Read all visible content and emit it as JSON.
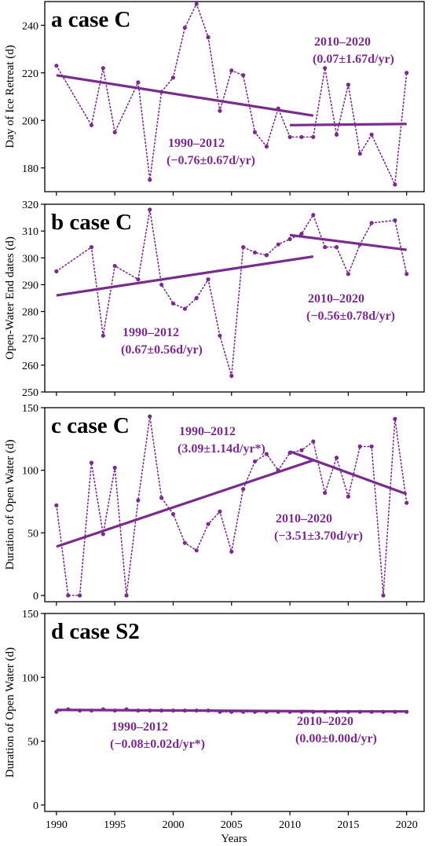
{
  "chart_data": [
    {
      "type": "line",
      "panel_label": "a case C",
      "ylabel": "Day of Ice Retreat (d)",
      "ylim": [
        170,
        250
      ],
      "yticks": [
        180,
        200,
        220,
        240
      ],
      "x": [
        1990,
        1991,
        1992,
        1993,
        1994,
        1995,
        1996,
        1997,
        1998,
        1999,
        2000,
        2001,
        2002,
        2003,
        2004,
        2005,
        2006,
        2007,
        2008,
        2009,
        2010,
        2011,
        2012,
        2013,
        2014,
        2015,
        2016,
        2017,
        2018,
        2019,
        2020
      ],
      "series": [
        {
          "values": [
            223,
            null,
            null,
            198,
            222,
            195,
            null,
            216,
            175,
            212,
            218,
            239,
            249,
            235,
            204,
            221,
            219,
            195,
            189,
            205,
            193,
            193,
            193,
            222,
            194,
            215,
            186,
            194,
            null,
            173,
            220
          ]
        }
      ],
      "trends": [
        {
          "label": "1990–2012",
          "rate": "(−0.76±0.67d/yr)",
          "x": [
            1990,
            2012
          ],
          "y": [
            219,
            202
          ]
        },
        {
          "label": "2010–2020",
          "rate": "(0.07±1.67d/yr)",
          "x": [
            2010,
            2020
          ],
          "y": [
            198,
            198.5
          ]
        }
      ]
    },
    {
      "type": "line",
      "panel_label": "b case C",
      "ylabel": "Open-Water End dates (d)",
      "ylim": [
        250,
        320
      ],
      "yticks": [
        250,
        260,
        270,
        280,
        290,
        300,
        310,
        320
      ],
      "x": [
        1990,
        1991,
        1992,
        1993,
        1994,
        1995,
        1996,
        1997,
        1998,
        1999,
        2000,
        2001,
        2002,
        2003,
        2004,
        2005,
        2006,
        2007,
        2008,
        2009,
        2010,
        2011,
        2012,
        2013,
        2014,
        2015,
        2016,
        2017,
        2018,
        2019,
        2020
      ],
      "series": [
        {
          "values": [
            295,
            null,
            null,
            304,
            271,
            297,
            null,
            292,
            318,
            290,
            283,
            281,
            285,
            292,
            271,
            256,
            304,
            302,
            301,
            305,
            307,
            309,
            316,
            304,
            304,
            294,
            305,
            313,
            null,
            314,
            294
          ]
        }
      ],
      "trends": [
        {
          "label": "1990–2012",
          "rate": "(0.67±0.56d/yr)",
          "x": [
            1990,
            2012
          ],
          "y": [
            286,
            300.5
          ]
        },
        {
          "label": "2010–2020",
          "rate": "(−0.56±0.78d/yr)",
          "x": [
            2010,
            2020
          ],
          "y": [
            308.5,
            303
          ]
        }
      ]
    },
    {
      "type": "line",
      "panel_label": "c case C",
      "ylabel": "Duration of Open Water (d)",
      "ylim": [
        -5,
        150
      ],
      "yticks": [
        0,
        50,
        100,
        150
      ],
      "x": [
        1990,
        1991,
        1992,
        1993,
        1994,
        1995,
        1996,
        1997,
        1998,
        1999,
        2000,
        2001,
        2002,
        2003,
        2004,
        2005,
        2006,
        2007,
        2008,
        2009,
        2010,
        2011,
        2012,
        2013,
        2014,
        2015,
        2016,
        2017,
        2018,
        2019,
        2020
      ],
      "series": [
        {
          "values": [
            72,
            0,
            0,
            106,
            49,
            102,
            0,
            76,
            143,
            78,
            65,
            42,
            36,
            57,
            67,
            35,
            85,
            107,
            113,
            100,
            114,
            116,
            123,
            82,
            110,
            79,
            119,
            119,
            0,
            141,
            74
          ]
        }
      ],
      "trends": [
        {
          "label": "1990–2012",
          "rate": "(3.09±1.14d/yr*)",
          "x": [
            1990,
            2012
          ],
          "y": [
            39,
            108
          ]
        },
        {
          "label": "2010–2020",
          "rate": "(−3.51±3.70d/yr)",
          "x": [
            2010,
            2020
          ],
          "y": [
            115,
            81
          ]
        }
      ]
    },
    {
      "type": "line",
      "panel_label": "d case S2",
      "ylabel": "Duration of Open Water (d)",
      "ylim": [
        -5,
        150
      ],
      "yticks": [
        0,
        50,
        100,
        150
      ],
      "x": [
        1990,
        1991,
        1992,
        1993,
        1994,
        1995,
        1996,
        1997,
        1998,
        1999,
        2000,
        2001,
        2002,
        2003,
        2004,
        2005,
        2006,
        2007,
        2008,
        2009,
        2010,
        2011,
        2012,
        2013,
        2014,
        2015,
        2016,
        2017,
        2018,
        2019,
        2020
      ],
      "series": [
        {
          "values": [
            73,
            75,
            74,
            74,
            75,
            74,
            75,
            74,
            74,
            74,
            74,
            74,
            74,
            74,
            73,
            73,
            73,
            73,
            73,
            73,
            73,
            73,
            73,
            73,
            73,
            73,
            73,
            73,
            73,
            73,
            73
          ]
        }
      ],
      "trends": [
        {
          "label": "1990–2012",
          "rate": "(−0.08±0.02d/yr*)",
          "x": [
            1990,
            2012
          ],
          "y": [
            74.5,
            73.5
          ]
        },
        {
          "label": "2010–2020",
          "rate": "(0.00±0.00d/yr)",
          "x": [
            2010,
            2020
          ],
          "y": [
            73.3,
            73.3
          ]
        }
      ]
    }
  ],
  "xaxis": {
    "xlabel": "Years",
    "xlim": [
      1989,
      2021.5
    ],
    "xticks": [
      1990,
      1995,
      2000,
      2005,
      2010,
      2015,
      2020
    ]
  },
  "style": {
    "line_color": "#7b2a8f",
    "frame_color": "#000000"
  }
}
